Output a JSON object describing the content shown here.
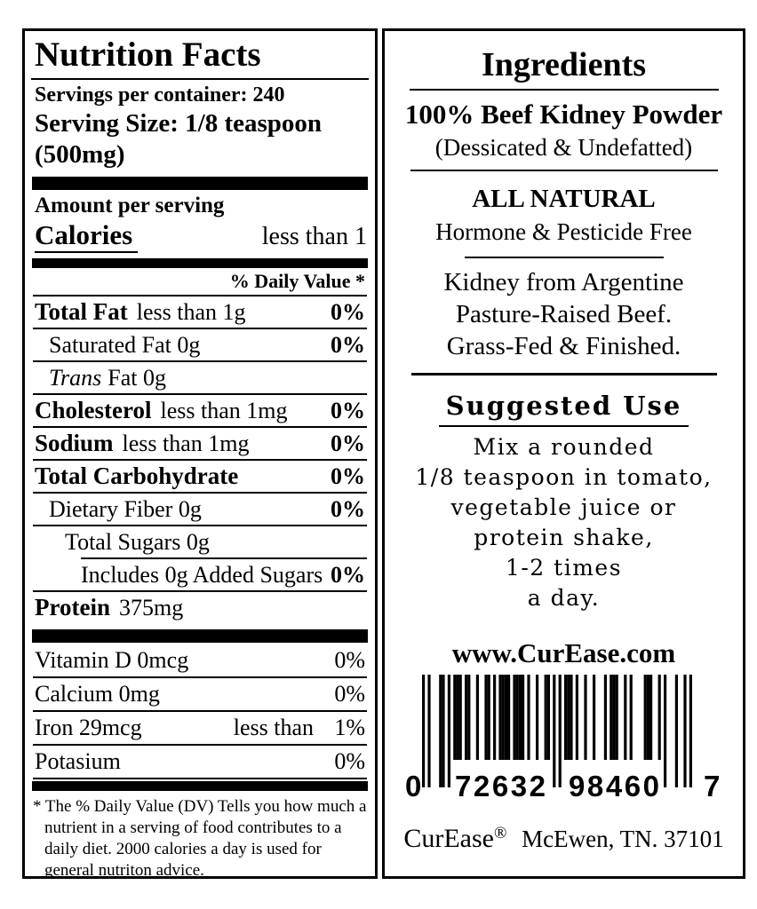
{
  "colors": {
    "ink": "#000000",
    "paper": "#ffffff"
  },
  "nutrition_panel": {
    "title": "Nutrition Facts",
    "servings_per_container": "Servings per container: 240",
    "serving_size_line1": "Serving Size: 1/8 teaspoon",
    "serving_size_line2": "(500mg)",
    "amount_per_serving": "Amount per serving",
    "calories_label": "Calories",
    "calories_value": "less than 1",
    "daily_value_header": "% Daily Value *",
    "rows": [
      {
        "name": "Total Fat",
        "amount": "less than 1g",
        "dv": "0%"
      },
      {
        "name": "Saturated Fat 0g",
        "dv": "0%"
      },
      {
        "prefix": "Trans",
        "name": "Fat 0g"
      },
      {
        "name": "Cholesterol",
        "amount": "less than 1mg",
        "dv": "0%"
      },
      {
        "name": "Sodium",
        "amount": "less than 1mg",
        "dv": "0%"
      },
      {
        "name": "Total Carbohydrate",
        "dv": "0%"
      },
      {
        "name": "Dietary Fiber 0g",
        "dv": "0%"
      },
      {
        "name": "Total Sugars 0g"
      },
      {
        "name": "Includes 0g Added Sugars",
        "dv": "0%"
      },
      {
        "name": "Protein",
        "amount": "375mg"
      }
    ],
    "vitamin_rows": [
      {
        "name": "Vitamin D 0mcg",
        "dv": "0%"
      },
      {
        "name": "Calcium 0mg",
        "dv": "0%"
      },
      {
        "name": "Iron 29mcg",
        "amount": "less than",
        "dv": "1%"
      },
      {
        "name": "Potasium",
        "dv": "0%"
      }
    ],
    "footnote": "* The % Daily Value (DV) Tells you how much a nutrient in a serving of food contributes to a daily diet. 2000 calories a day is used for general nutriton advice."
  },
  "ingredients_panel": {
    "title": "Ingredients",
    "ingredient": "100% Beef Kidney Powder",
    "ingredient_note": "(Dessicated & Undefatted)",
    "claim_title": "ALL NATURAL",
    "claim_sub": "Hormone & Pesticide Free",
    "origin_lines": [
      "Kidney from Argentine",
      "Pasture-Raised Beef.",
      "Grass-Fed & Finished."
    ],
    "suggested_use_title": "Suggested Use",
    "suggested_use_lines": [
      "Mix a rounded",
      "1/8 teaspoon in tomato,",
      "vegetable juice or",
      "protein shake,",
      "1-2 times",
      "a day."
    ],
    "website": "www.CurEase.com",
    "barcode": {
      "value": "072632984607",
      "left_digit": "0",
      "group1": "72632",
      "group2": "98460",
      "right_digit": "7"
    },
    "footer_brand": "CurEase",
    "footer_reg": "®",
    "footer_address": "McEwen, TN. 37101"
  }
}
